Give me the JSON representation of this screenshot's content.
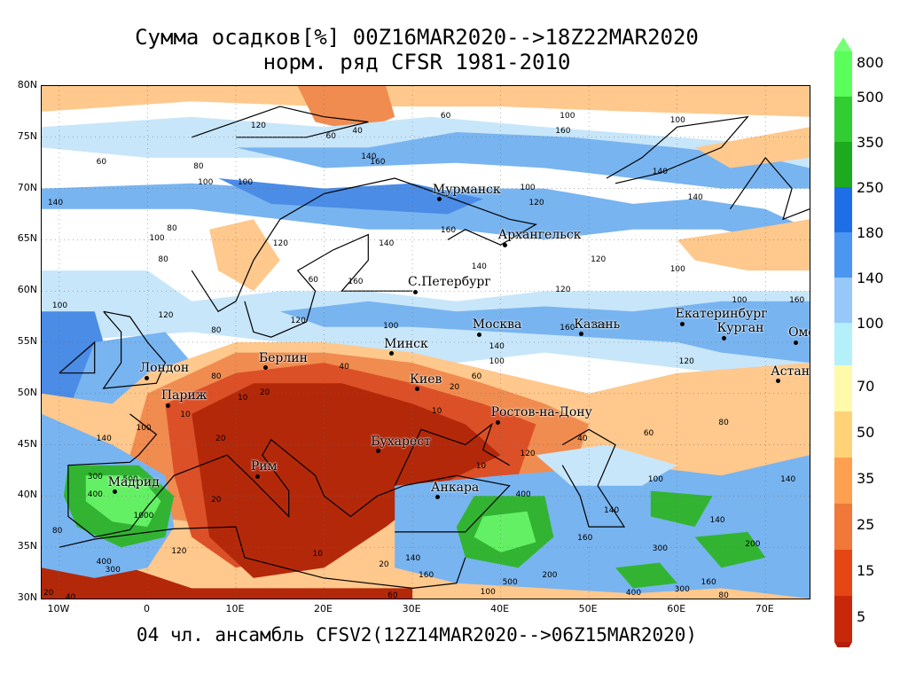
{
  "title": {
    "line1": "Сумма осадков[%] 00Z16MAR2020-->18Z22MAR2020",
    "line2": "норм. ряд CFSR 1981-2010"
  },
  "footer": "04 чл. ансамбль CFSV2(12Z14MAR2020-->06Z15MAR2020)",
  "lat_labels": [
    "80N",
    "75N",
    "70N",
    "65N",
    "60N",
    "55N",
    "50N",
    "45N",
    "40N",
    "35N",
    "30N"
  ],
  "lon_labels": [
    "10W",
    "0",
    "10E",
    "20E",
    "30E",
    "40E",
    "50E",
    "60E",
    "70E"
  ],
  "cities": [
    {
      "name": "Мурманск",
      "lon": 33.1,
      "lat": 68.97
    },
    {
      "name": "Архангельск",
      "lon": 40.5,
      "lat": 64.5
    },
    {
      "name": "С.Петербург",
      "lon": 30.3,
      "lat": 59.9
    },
    {
      "name": "Москва",
      "lon": 37.6,
      "lat": 55.75
    },
    {
      "name": "Казань",
      "lon": 49.1,
      "lat": 55.8
    },
    {
      "name": "Екатеринбург",
      "lon": 60.6,
      "lat": 56.8
    },
    {
      "name": "Курган",
      "lon": 65.3,
      "lat": 55.4
    },
    {
      "name": "Омск",
      "lon": 73.4,
      "lat": 55.0
    },
    {
      "name": "Астана",
      "lon": 71.4,
      "lat": 51.2
    },
    {
      "name": "Минск",
      "lon": 27.6,
      "lat": 53.9
    },
    {
      "name": "Берлин",
      "lon": 13.4,
      "lat": 52.5
    },
    {
      "name": "Лондон",
      "lon": -0.1,
      "lat": 51.5
    },
    {
      "name": "Париж",
      "lon": 2.35,
      "lat": 48.85
    },
    {
      "name": "Киев",
      "lon": 30.5,
      "lat": 50.45
    },
    {
      "name": "Ростов-на-Дону",
      "lon": 39.7,
      "lat": 47.2
    },
    {
      "name": "Бухарест",
      "lon": 26.1,
      "lat": 44.4
    },
    {
      "name": "Рим",
      "lon": 12.5,
      "lat": 41.9
    },
    {
      "name": "Мадрид",
      "lon": -3.7,
      "lat": 40.4
    },
    {
      "name": "Анкара",
      "lon": 32.9,
      "lat": 39.9
    }
  ],
  "contour_labels": [
    {
      "t": "60",
      "lon": 34,
      "lat": 77
    },
    {
      "t": "100",
      "lon": 47.5,
      "lat": 77
    },
    {
      "t": "100",
      "lon": 60,
      "lat": 76.5
    },
    {
      "t": "120",
      "lon": 12.5,
      "lat": 76
    },
    {
      "t": "40",
      "lon": 24,
      "lat": 75.5
    },
    {
      "t": "60",
      "lon": 21,
      "lat": 75
    },
    {
      "t": "160",
      "lon": 47,
      "lat": 75.5
    },
    {
      "t": "60",
      "lon": -5,
      "lat": 72.5
    },
    {
      "t": "80",
      "lon": 6,
      "lat": 72
    },
    {
      "t": "140",
      "lon": 25,
      "lat": 73
    },
    {
      "t": "160",
      "lon": 26,
      "lat": 72.5
    },
    {
      "t": "100",
      "lon": 6.5,
      "lat": 70.5
    },
    {
      "t": "100",
      "lon": 11,
      "lat": 70.5
    },
    {
      "t": "140",
      "lon": 58,
      "lat": 71.5
    },
    {
      "t": "140",
      "lon": 62,
      "lat": 69
    },
    {
      "t": "100",
      "lon": 43,
      "lat": 70
    },
    {
      "t": "120",
      "lon": 44,
      "lat": 68.5
    },
    {
      "t": "140",
      "lon": -10.5,
      "lat": 68.5
    },
    {
      "t": "100",
      "lon": 1,
      "lat": 65
    },
    {
      "t": "80",
      "lon": 3,
      "lat": 66
    },
    {
      "t": "160",
      "lon": 34,
      "lat": 65.8
    },
    {
      "t": "140",
      "lon": 27,
      "lat": 64.5
    },
    {
      "t": "120",
      "lon": 15,
      "lat": 64.5
    },
    {
      "t": "80",
      "lon": 2,
      "lat": 63
    },
    {
      "t": "140",
      "lon": 37.5,
      "lat": 62.3
    },
    {
      "t": "120",
      "lon": 51,
      "lat": 63
    },
    {
      "t": "100",
      "lon": 60,
      "lat": 62
    },
    {
      "t": "60",
      "lon": 19,
      "lat": 61
    },
    {
      "t": "160",
      "lon": 23.5,
      "lat": 60.8
    },
    {
      "t": "120",
      "lon": 47,
      "lat": 60
    },
    {
      "t": "100",
      "lon": -10,
      "lat": 58.5
    },
    {
      "t": "100",
      "lon": 67,
      "lat": 59
    },
    {
      "t": "160",
      "lon": 73.5,
      "lat": 59
    },
    {
      "t": "120",
      "lon": 2,
      "lat": 57.5
    },
    {
      "t": "80",
      "lon": 8,
      "lat": 56
    },
    {
      "t": "120",
      "lon": 17,
      "lat": 57
    },
    {
      "t": "100",
      "lon": 27.5,
      "lat": 56.5
    },
    {
      "t": "160",
      "lon": 47.5,
      "lat": 56.3
    },
    {
      "t": "120",
      "lon": 51,
      "lat": 56.5
    },
    {
      "t": "140",
      "lon": 39.5,
      "lat": 54.5
    },
    {
      "t": "100",
      "lon": 39.5,
      "lat": 53
    },
    {
      "t": "120",
      "lon": 61,
      "lat": 53
    },
    {
      "t": "40",
      "lon": 22.5,
      "lat": 52.5
    },
    {
      "t": "80",
      "lon": 8,
      "lat": 51.5
    },
    {
      "t": "60",
      "lon": 37.5,
      "lat": 51.5
    },
    {
      "t": "20",
      "lon": 13.5,
      "lat": 50
    },
    {
      "t": "10",
      "lon": 11,
      "lat": 49.5
    },
    {
      "t": "20",
      "lon": 35,
      "lat": 50.5
    },
    {
      "t": "10",
      "lon": 33,
      "lat": 48.2
    },
    {
      "t": "10",
      "lon": 4.5,
      "lat": 47.8
    },
    {
      "t": "100",
      "lon": -0.5,
      "lat": 46.5
    },
    {
      "t": "140",
      "lon": -5,
      "lat": 45.5
    },
    {
      "t": "20",
      "lon": 8.5,
      "lat": 45.5
    },
    {
      "t": "80",
      "lon": 65.5,
      "lat": 47
    },
    {
      "t": "60",
      "lon": 57,
      "lat": 46
    },
    {
      "t": "40",
      "lon": 49.5,
      "lat": 45.5
    },
    {
      "t": "120",
      "lon": 43,
      "lat": 44
    },
    {
      "t": "10",
      "lon": 38,
      "lat": 42.8
    },
    {
      "t": "300",
      "lon": -6,
      "lat": 41.8
    },
    {
      "t": "500",
      "lon": -2,
      "lat": 41.5
    },
    {
      "t": "400",
      "lon": -6,
      "lat": 40
    },
    {
      "t": "100",
      "lon": 57.5,
      "lat": 41.5
    },
    {
      "t": "140",
      "lon": 72.5,
      "lat": 41.5
    },
    {
      "t": "400",
      "lon": 42.5,
      "lat": 40
    },
    {
      "t": "20",
      "lon": 8,
      "lat": 39.5
    },
    {
      "t": "1000",
      "lon": -0.8,
      "lat": 38
    },
    {
      "t": "140",
      "lon": 52.5,
      "lat": 38.5
    },
    {
      "t": "140",
      "lon": 64.5,
      "lat": 37.5
    },
    {
      "t": "80",
      "lon": -10,
      "lat": 36.5
    },
    {
      "t": "160",
      "lon": 49.5,
      "lat": 35.8
    },
    {
      "t": "200",
      "lon": 68.5,
      "lat": 35.2
    },
    {
      "t": "120",
      "lon": 3.5,
      "lat": 34.5
    },
    {
      "t": "300",
      "lon": 58,
      "lat": 34.8
    },
    {
      "t": "10",
      "lon": 19.5,
      "lat": 34.2
    },
    {
      "t": "20",
      "lon": 27,
      "lat": 33.2
    },
    {
      "t": "140",
      "lon": 30,
      "lat": 33.8
    },
    {
      "t": "160",
      "lon": 31.5,
      "lat": 32.2
    },
    {
      "t": "400",
      "lon": -5,
      "lat": 33.5
    },
    {
      "t": "300",
      "lon": -4,
      "lat": 32.7
    },
    {
      "t": "500",
      "lon": 41,
      "lat": 31.5
    },
    {
      "t": "200",
      "lon": 45.5,
      "lat": 32.2
    },
    {
      "t": "160",
      "lon": 63.5,
      "lat": 31.5
    },
    {
      "t": "300",
      "lon": 60.5,
      "lat": 30.8
    },
    {
      "t": "400",
      "lon": 55,
      "lat": 30.4
    },
    {
      "t": "20",
      "lon": -11,
      "lat": 30.4
    },
    {
      "t": "40",
      "lon": -8.5,
      "lat": 30
    },
    {
      "t": "80",
      "lon": 65.5,
      "lat": 30.2
    },
    {
      "t": "60",
      "lon": 28,
      "lat": 30.2
    },
    {
      "t": "100",
      "lon": 38.5,
      "lat": 30.5
    }
  ],
  "legend": {
    "top_levels": [
      {
        "label": "800",
        "color": "#5aff5a"
      },
      {
        "label": "500",
        "color": "#32cd32"
      },
      {
        "label": "350",
        "color": "#1eaa1e"
      },
      {
        "label": "250",
        "color": "#1e6ee6"
      },
      {
        "label": "180",
        "color": "#4a96f0"
      },
      {
        "label": "140",
        "color": "#96c8fa"
      },
      {
        "label": "100",
        "color": "#b4f0fa"
      }
    ],
    "bottom_levels": [
      {
        "label": "70",
        "color": "#fffaaa"
      },
      {
        "label": "50",
        "color": "#ffd278"
      },
      {
        "label": "35",
        "color": "#ffa050"
      },
      {
        "label": "25",
        "color": "#f07838"
      },
      {
        "label": "15",
        "color": "#e64614"
      },
      {
        "label": "5",
        "color": "#c8280a"
      }
    ],
    "top_arrow_color": "#78ff78",
    "bottom_arrow_color": "#b41e0a"
  },
  "map": {
    "lon_min": -12,
    "lon_max": 75,
    "lat_min": 30,
    "lat_max": 80,
    "colors": {
      "deep_red": "#b4280a",
      "red": "#dc5028",
      "orange": "#f08c50",
      "light_orange": "#ffc88c",
      "pale_yellow": "#fff0b4",
      "white": "#ffffff",
      "pale_blue": "#c8e6fa",
      "blue": "#78b4f0",
      "mid_blue": "#4a8ce6",
      "green": "#32b432",
      "bright_green": "#64f064"
    }
  }
}
